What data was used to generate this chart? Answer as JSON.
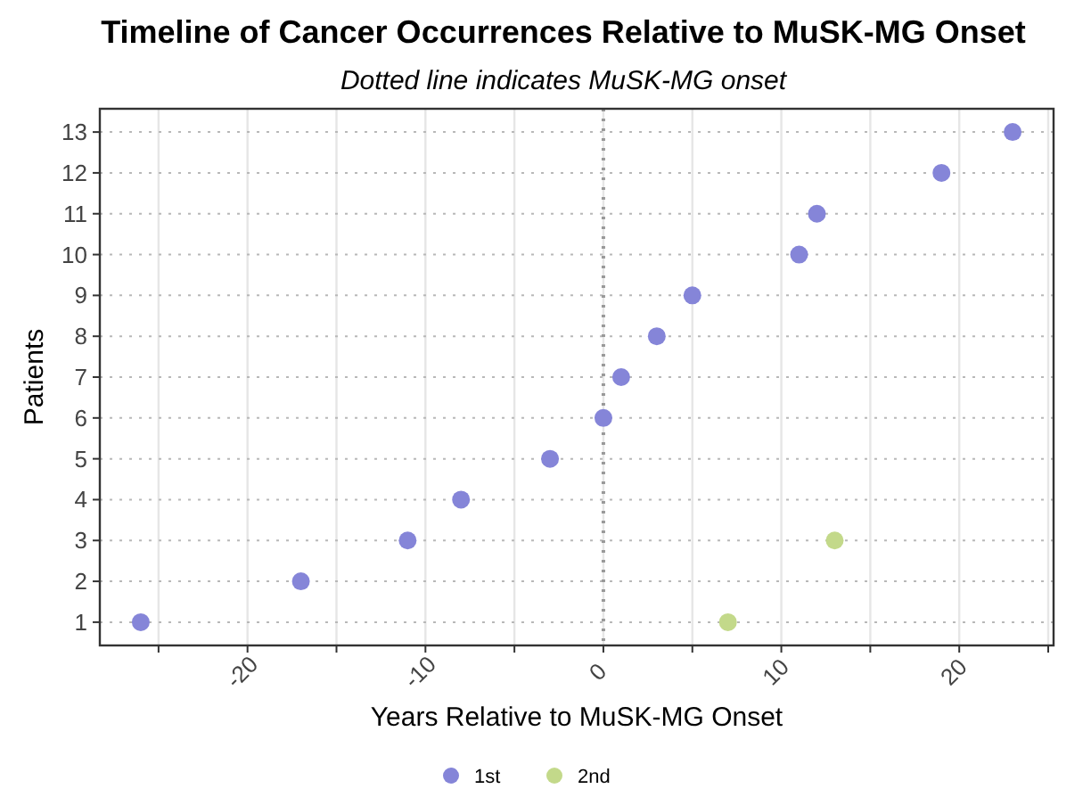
{
  "chart_data": {
    "type": "scatter",
    "title": "Timeline of Cancer Occurrences Relative to MuSK-MG Onset",
    "subtitle": "Dotted line indicates MuSK-MG onset",
    "xlabel": "Years Relative to MuSK-MG Onset",
    "ylabel": "Patients",
    "series": [
      {
        "name": "1st",
        "color": "#8585d8",
        "x": [
          -26,
          -17,
          -11,
          -8,
          -3,
          0,
          1,
          3,
          5,
          11,
          12,
          19,
          23
        ],
        "values": [
          1,
          2,
          3,
          4,
          5,
          6,
          7,
          8,
          9,
          10,
          11,
          12,
          13
        ]
      },
      {
        "name": "2nd",
        "color": "#c3d98a",
        "x": [
          7,
          13
        ],
        "values": [
          1,
          3
        ]
      }
    ],
    "xlim": [
      -28.3,
      25.3
    ],
    "xticks": [
      {
        "value": -25,
        "label": null
      },
      -20,
      {
        "value": -15,
        "label": null
      },
      -10,
      {
        "value": -5,
        "label": null
      },
      0,
      {
        "value": 5,
        "label": null
      },
      10,
      {
        "value": 15,
        "label": null
      },
      20,
      {
        "value": 25,
        "label": null
      }
    ],
    "ylim": [
      0.43,
      13.57
    ],
    "yticks": [
      1,
      2,
      3,
      4,
      5,
      6,
      7,
      8,
      9,
      10,
      11,
      12,
      13
    ],
    "ref_lines": [
      {
        "axis": "x",
        "value": 0,
        "line_style": "dotted",
        "color": "#999999"
      }
    ],
    "grid": true,
    "legend": "bottom",
    "marker": "circle"
  }
}
